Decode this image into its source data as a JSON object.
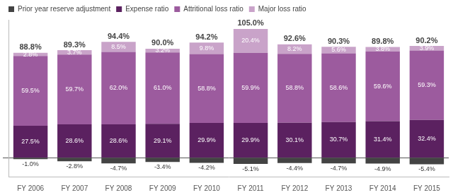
{
  "chart_data": {
    "type": "bar",
    "stacked": true,
    "categories": [
      "FY 2006",
      "FY 2007",
      "FY 2008",
      "FY 2009",
      "FY 2010",
      "FY 2011",
      "FY 2012",
      "FY 2013",
      "FY 2014",
      "FY 2015"
    ],
    "series": [
      {
        "name": "Prior year reserve adjustment",
        "color": "#434343",
        "values": [
          -1.0,
          -2.8,
          -4.7,
          -3.4,
          -4.2,
          -5.1,
          -4.4,
          -4.7,
          -4.9,
          -5.4
        ],
        "value_labels": [
          "-1.0%",
          "-2.8%",
          "-4.7%",
          "-3.4%",
          "-4.2%",
          "-5.1%",
          "-4.4%",
          "-4.7%",
          "-4.9%",
          "-5.4%"
        ]
      },
      {
        "name": "Expense ratio",
        "color": "#5b2160",
        "values": [
          27.5,
          28.6,
          28.6,
          29.1,
          29.9,
          29.9,
          30.1,
          30.7,
          31.4,
          32.4
        ],
        "value_labels": [
          "27.5%",
          "28.6%",
          "28.6%",
          "29.1%",
          "29.9%",
          "29.9%",
          "30.1%",
          "30.7%",
          "31.4%",
          "32.4%"
        ]
      },
      {
        "name": "Attritional loss ratio",
        "color": "#9c5b9e",
        "values": [
          59.5,
          59.7,
          62.0,
          61.0,
          58.8,
          59.9,
          58.8,
          58.6,
          59.6,
          59.3
        ],
        "value_labels": [
          "59.5%",
          "59.7%",
          "62.0%",
          "61.0%",
          "58.8%",
          "59.9%",
          "58.8%",
          "58.6%",
          "59.6%",
          "59.3%"
        ]
      },
      {
        "name": "Major loss ratio",
        "color": "#c9a3c9",
        "values": [
          2.8,
          3.7,
          8.5,
          3.2,
          9.8,
          20.4,
          8.2,
          5.6,
          3.8,
          3.9
        ],
        "value_labels": [
          "2.8%",
          "3.7%",
          "8.5%",
          "3.2%",
          "9.8%",
          "20.4%",
          "8.2%",
          "5.6%",
          "3.8%",
          "3.9%"
        ]
      }
    ],
    "totals": [
      88.8,
      89.3,
      94.4,
      90.0,
      94.2,
      105.0,
      92.6,
      90.3,
      89.8,
      90.2
    ],
    "total_labels": [
      "88.8%",
      "89.3%",
      "94.4%",
      "90.0%",
      "94.2%",
      "105.0%",
      "92.6%",
      "90.3%",
      "89.8%",
      "90.2%"
    ],
    "ylim": [
      -16,
      118
    ],
    "yticks": [
      0
    ],
    "grid": true,
    "legend": "top-left",
    "data_labels": true,
    "tick_labels": "x"
  }
}
